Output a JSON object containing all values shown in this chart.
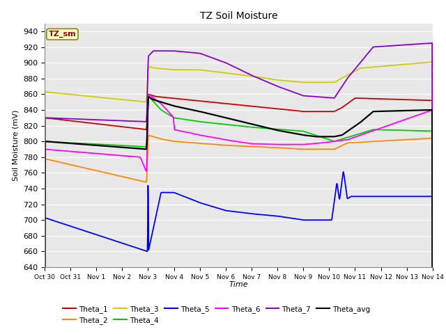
{
  "title": "TZ Soil Moisture",
  "xlabel": "Time",
  "ylabel": "Soil Moisture (mV)",
  "ylim": [
    640,
    950
  ],
  "yticks": [
    640,
    660,
    680,
    700,
    720,
    740,
    760,
    780,
    800,
    820,
    840,
    860,
    880,
    900,
    920,
    940
  ],
  "background_color": "#ffffff",
  "plot_bg_color": "#e8e8e8",
  "legend_label": "TZ_sm",
  "colors": {
    "Theta_1": "#cc0000",
    "Theta_2": "#ff8800",
    "Theta_3": "#cccc00",
    "Theta_4": "#00cc00",
    "Theta_5": "#0000ff",
    "Theta_6": "#ff00ff",
    "Theta_7": "#8800cc",
    "Theta_avg": "#000000"
  },
  "x_tick_labels": [
    "Oct 30",
    "Oct 31",
    "Nov 1",
    "Nov 2",
    "Nov 3",
    "Nov 4",
    "Nov 5",
    "Nov 6",
    "Nov 7",
    "Nov 8",
    "Nov 9",
    "Nov 10",
    "Nov 11",
    "Nov 12",
    "Nov 13",
    "Nov 14"
  ]
}
